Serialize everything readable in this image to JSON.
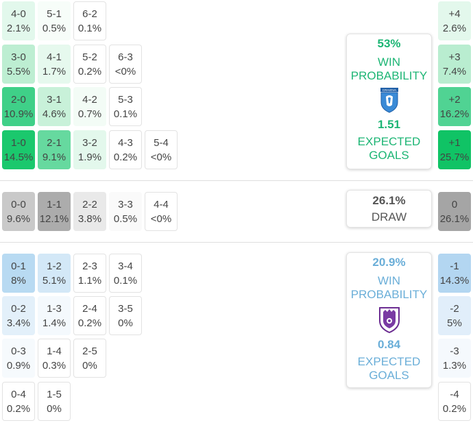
{
  "home_grid": [
    [
      {
        "score": "4-0",
        "pct": "2.1%",
        "bg": "#e2f8ec"
      },
      {
        "score": "5-1",
        "pct": "0.5%",
        "bg": "#f7fdf9"
      },
      {
        "score": "6-2",
        "pct": "0.1%",
        "bg": "#ffffff"
      }
    ],
    [
      {
        "score": "3-0",
        "pct": "5.5%",
        "bg": "#bdeed2"
      },
      {
        "score": "4-1",
        "pct": "1.7%",
        "bg": "#e6f9ee"
      },
      {
        "score": "5-2",
        "pct": "0.2%",
        "bg": "#ffffff"
      },
      {
        "score": "6-3",
        "pct": "<0%",
        "bg": "#ffffff"
      }
    ],
    [
      {
        "score": "2-0",
        "pct": "10.9%",
        "bg": "#3fd088"
      },
      {
        "score": "3-1",
        "pct": "4.6%",
        "bg": "#c8f1d9"
      },
      {
        "score": "4-2",
        "pct": "0.7%",
        "bg": "#f3fcf6"
      },
      {
        "score": "5-3",
        "pct": "0.1%",
        "bg": "#ffffff"
      }
    ],
    [
      {
        "score": "1-0",
        "pct": "14.5%",
        "bg": "#1bc86d"
      },
      {
        "score": "2-1",
        "pct": "9.1%",
        "bg": "#66d99f"
      },
      {
        "score": "3-2",
        "pct": "1.9%",
        "bg": "#e3f8ec"
      },
      {
        "score": "4-3",
        "pct": "0.2%",
        "bg": "#ffffff"
      },
      {
        "score": "5-4",
        "pct": "<0%",
        "bg": "#ffffff"
      }
    ]
  ],
  "draw_row": [
    {
      "score": "0-0",
      "pct": "9.6%",
      "bg": "#c9c9c9"
    },
    {
      "score": "1-1",
      "pct": "12.1%",
      "bg": "#acacac"
    },
    {
      "score": "2-2",
      "pct": "3.8%",
      "bg": "#e9e9e9"
    },
    {
      "score": "3-3",
      "pct": "0.5%",
      "bg": "#fafafa"
    },
    {
      "score": "4-4",
      "pct": "<0%",
      "bg": "#ffffff"
    }
  ],
  "away_grid": [
    [
      {
        "score": "0-1",
        "pct": "8%",
        "bg": "#b8daf2"
      },
      {
        "score": "1-2",
        "pct": "5.1%",
        "bg": "#d3e8f7"
      },
      {
        "score": "2-3",
        "pct": "1.1%",
        "bg": "#ffffff"
      },
      {
        "score": "3-4",
        "pct": "0.1%",
        "bg": "#ffffff"
      }
    ],
    [
      {
        "score": "0-2",
        "pct": "3.4%",
        "bg": "#e3f0fa"
      },
      {
        "score": "1-3",
        "pct": "1.4%",
        "bg": "#f4f9fd"
      },
      {
        "score": "2-4",
        "pct": "0.2%",
        "bg": "#ffffff"
      },
      {
        "score": "3-5",
        "pct": "0%",
        "bg": "#ffffff"
      }
    ],
    [
      {
        "score": "0-3",
        "pct": "0.9%",
        "bg": "#f6fafd"
      },
      {
        "score": "1-4",
        "pct": "0.3%",
        "bg": "#ffffff"
      },
      {
        "score": "2-5",
        "pct": "0%",
        "bg": "#ffffff"
      }
    ],
    [
      {
        "score": "0-4",
        "pct": "0.2%",
        "bg": "#ffffff"
      },
      {
        "score": "1-5",
        "pct": "0%",
        "bg": "#ffffff"
      }
    ]
  ],
  "margin_home": [
    {
      "score": "+4",
      "pct": "2.6%",
      "bg": "#e3f8ec"
    },
    {
      "score": "+3",
      "pct": "7.4%",
      "bg": "#b9edd0"
    },
    {
      "score": "+2",
      "pct": "16.2%",
      "bg": "#50d393"
    },
    {
      "score": "+1",
      "pct": "25.7%",
      "bg": "#10c365"
    }
  ],
  "margin_draw": {
    "score": "0",
    "pct": "26.1%",
    "bg": "#a5a5a5"
  },
  "margin_away": [
    {
      "score": "-1",
      "pct": "14.3%",
      "bg": "#b3d6f1"
    },
    {
      "score": "-2",
      "pct": "5%",
      "bg": "#e1eefa"
    },
    {
      "score": "-3",
      "pct": "1.3%",
      "bg": "#f5f9fd"
    },
    {
      "score": "-4",
      "pct": "0.2%",
      "bg": "#ffffff"
    }
  ],
  "home_card": {
    "win_pct": "53%",
    "win_label_1": "WIN",
    "win_label_2": "PROBABILITY",
    "crest": "craiova-crest-icon",
    "crest_text": "CRAIOVA",
    "xg": "1.51",
    "xg_label_1": "EXPECTED",
    "xg_label_2": "GOALS"
  },
  "draw_card": {
    "pct": "26.1%",
    "label": "DRAW"
  },
  "away_card": {
    "win_pct": "20.9%",
    "win_label_1": "WIN",
    "win_label_2": "PROBABILITY",
    "crest": "fc-arges-crest-icon",
    "xg": "0.84",
    "xg_label_1": "EXPECTED",
    "xg_label_2": "GOALS"
  },
  "colors": {
    "home_accent": "#1cb574",
    "away_accent": "#6aaed8",
    "draw_text": "#555555"
  }
}
